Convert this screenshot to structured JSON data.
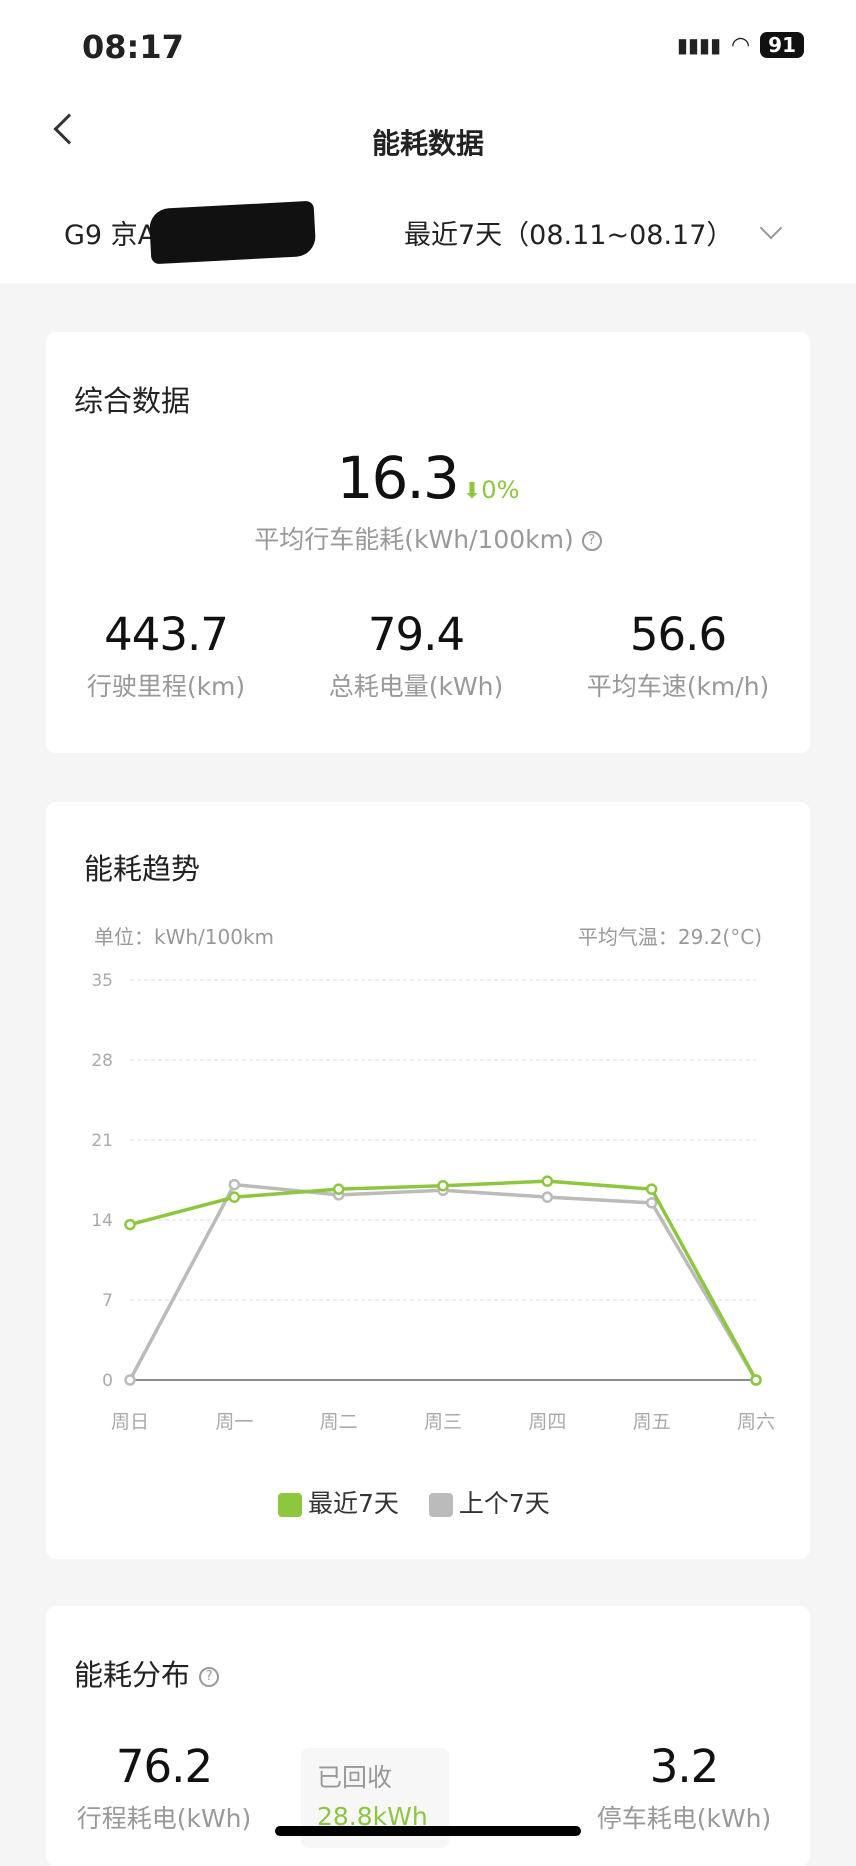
{
  "status_bar": {
    "time": "08:17",
    "battery": "91"
  },
  "nav": {
    "title": "能耗数据",
    "back_icon": "chevron-left-icon"
  },
  "filter": {
    "vehicle": "G9 京AC",
    "period": "最近7天（08.11~08.17）"
  },
  "summary": {
    "title": "综合数据",
    "avg_consumption": "16.3",
    "change": "0%",
    "change_direction": "down",
    "avg_label": "平均行车能耗(kWh/100km)",
    "stats": [
      {
        "value": "443.7",
        "label": "行驶里程(km)"
      },
      {
        "value": "79.4",
        "label": "总耗电量(kWh)"
      },
      {
        "value": "56.6",
        "label": "平均车速(km/h)"
      }
    ]
  },
  "trend": {
    "title": "能耗趋势",
    "unit": "单位：kWh/100km",
    "temperature": "平均气温：29.2(°C)"
  },
  "chart_data": {
    "type": "line",
    "categories": [
      "周日",
      "周一",
      "周二",
      "周三",
      "周四",
      "周五",
      "周六"
    ],
    "ylim": [
      0,
      35
    ],
    "yticks": [
      0,
      7,
      14,
      21,
      28,
      35
    ],
    "grid": true,
    "legend": "bottom",
    "series": [
      {
        "name": "最近7天",
        "color": "#8dc63f",
        "values": [
          13.6,
          16.0,
          16.7,
          17.0,
          17.4,
          16.7,
          0
        ]
      },
      {
        "name": "上个7天",
        "color": "#bbbbbb",
        "values": [
          0,
          17.1,
          16.2,
          16.6,
          16.0,
          15.5,
          0
        ]
      }
    ]
  },
  "distribution": {
    "title": "能耗分布",
    "driving": {
      "value": "76.2",
      "label": "行程耗电(kWh)"
    },
    "parking": {
      "value": "3.2",
      "label": "停车耗电(kWh)"
    },
    "recovered": {
      "label": "已回收",
      "value": "28.8kWh"
    }
  },
  "colors": {
    "accent": "#8dc63f",
    "gray": "#bbbbbb"
  }
}
